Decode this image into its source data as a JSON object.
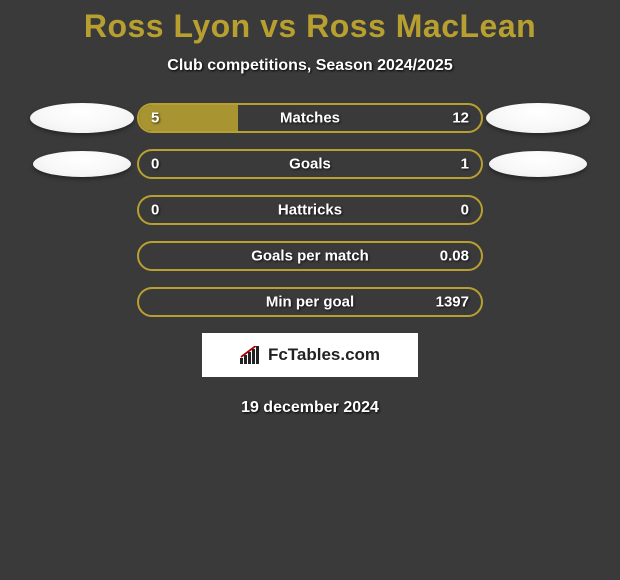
{
  "title": "Ross Lyon vs Ross MacLean",
  "subtitle": "Club competitions, Season 2024/2025",
  "date": "19 december 2024",
  "logo_text": "FcTables.com",
  "colors": {
    "background": "#3a3a3a",
    "accent": "#b8a030",
    "bar_fill": "#a89430",
    "bar_border": "#b8a030",
    "orb": "#ffffff"
  },
  "orbs": {
    "show_row1": true,
    "show_row2": true
  },
  "rows": [
    {
      "label": "Matches",
      "left": "5",
      "right": "12",
      "fill_pct": 29,
      "has_orbs": true,
      "orb_small": false
    },
    {
      "label": "Goals",
      "left": "0",
      "right": "1",
      "fill_pct": 0,
      "has_orbs": true,
      "orb_small": true
    },
    {
      "label": "Hattricks",
      "left": "0",
      "right": "0",
      "fill_pct": 0,
      "has_orbs": false,
      "orb_small": false
    },
    {
      "label": "Goals per match",
      "left": "",
      "right": "0.08",
      "fill_pct": 0,
      "has_orbs": false,
      "orb_small": false
    },
    {
      "label": "Min per goal",
      "left": "",
      "right": "1397",
      "fill_pct": 0,
      "has_orbs": false,
      "orb_small": false
    }
  ]
}
